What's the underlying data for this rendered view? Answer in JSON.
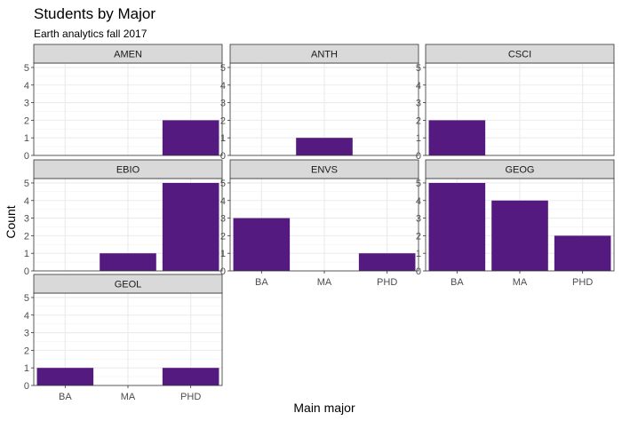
{
  "chart_data": {
    "type": "bar",
    "title": "Students by Major",
    "subtitle": "Earth analytics fall 2017",
    "xlabel": "Main major",
    "ylabel": "Count",
    "categories": [
      "BA",
      "MA",
      "PHD"
    ],
    "y_ticks": [
      0,
      1,
      2,
      3,
      4,
      5
    ],
    "ylim": [
      0,
      5.25
    ],
    "bar_color": "#551a80",
    "grid": true,
    "panels": [
      {
        "name": "AMEN",
        "values": [
          0,
          0,
          2
        ]
      },
      {
        "name": "ANTH",
        "values": [
          0,
          1,
          0
        ]
      },
      {
        "name": "CSCI",
        "values": [
          2,
          0,
          0
        ]
      },
      {
        "name": "EBIO",
        "values": [
          0,
          1,
          5
        ]
      },
      {
        "name": "ENVS",
        "values": [
          3,
          0,
          1
        ]
      },
      {
        "name": "GEOG",
        "values": [
          5,
          4,
          2
        ]
      },
      {
        "name": "GEOL",
        "values": [
          1,
          0,
          1
        ]
      }
    ]
  }
}
